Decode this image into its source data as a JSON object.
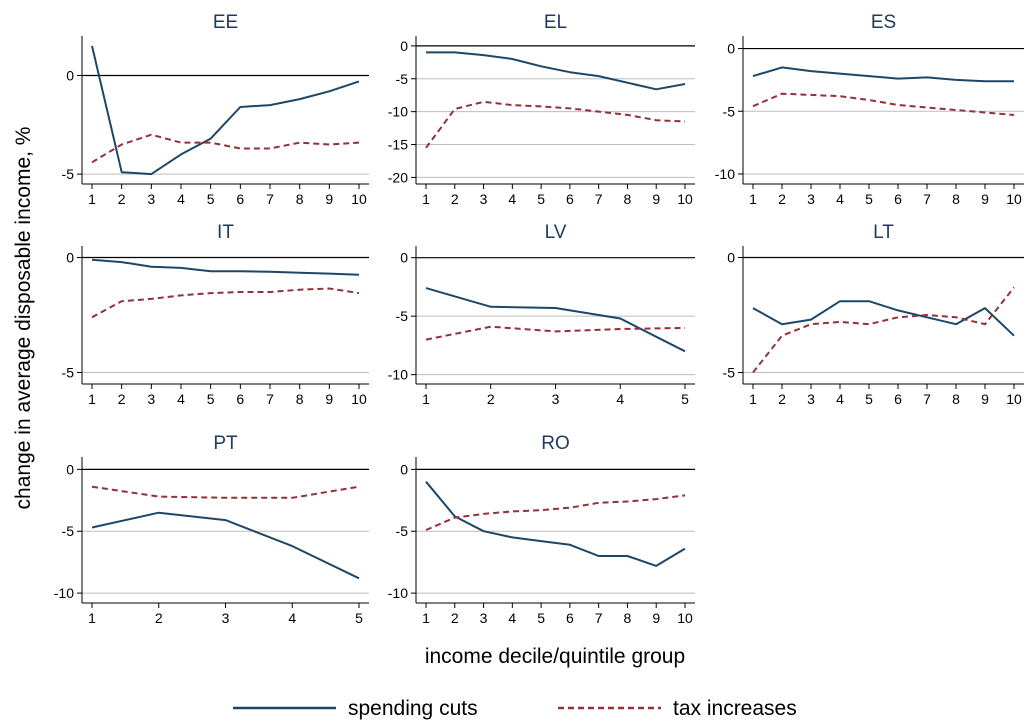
{
  "figure": {
    "ylabel": "change in average disposable income, %",
    "xlabel": "income decile/quintile group",
    "legend": {
      "position": "bottom-center"
    },
    "colors": {
      "spending": "#1e4668",
      "tax": "#93303a",
      "zero_line": "#000000",
      "grid": "#bdbdbd"
    }
  },
  "chart_data": [
    {
      "type": "line",
      "title": "EE",
      "x": [
        1,
        2,
        3,
        4,
        5,
        6,
        7,
        8,
        9,
        10
      ],
      "ylim": [
        -5.5,
        2
      ],
      "yticks": [
        0,
        -5
      ],
      "series": [
        {
          "name": "spending cuts",
          "values": [
            1.5,
            -4.9,
            -5.0,
            -4.0,
            -3.2,
            -1.6,
            -1.5,
            -1.2,
            -0.8,
            -0.3
          ]
        },
        {
          "name": "tax increases",
          "values": [
            -4.4,
            -3.5,
            -3.0,
            -3.4,
            -3.4,
            -3.7,
            -3.7,
            -3.4,
            -3.5,
            -3.4
          ]
        }
      ]
    },
    {
      "type": "line",
      "title": "EL",
      "x": [
        1,
        2,
        3,
        4,
        5,
        6,
        7,
        8,
        9,
        10
      ],
      "ylim": [
        -21,
        1.5
      ],
      "yticks": [
        0,
        -5,
        -10,
        -15,
        -20
      ],
      "series": [
        {
          "name": "spending cuts",
          "values": [
            -1.0,
            -1.0,
            -1.4,
            -2.0,
            -3.1,
            -4.0,
            -4.6,
            -5.6,
            -6.6,
            -5.8
          ]
        },
        {
          "name": "tax increases",
          "values": [
            -15.5,
            -9.6,
            -8.5,
            -9.0,
            -9.2,
            -9.5,
            -10.0,
            -10.5,
            -11.3,
            -11.5
          ]
        }
      ]
    },
    {
      "type": "line",
      "title": "ES",
      "x": [
        1,
        2,
        3,
        4,
        5,
        6,
        7,
        8,
        9,
        10
      ],
      "ylim": [
        -10.8,
        1
      ],
      "yticks": [
        0,
        -5,
        -10
      ],
      "series": [
        {
          "name": "spending cuts",
          "values": [
            -2.2,
            -1.5,
            -1.8,
            -2.0,
            -2.2,
            -2.4,
            -2.3,
            -2.5,
            -2.6,
            -2.6
          ]
        },
        {
          "name": "tax increases",
          "values": [
            -4.6,
            -3.6,
            -3.7,
            -3.8,
            -4.1,
            -4.5,
            -4.7,
            -4.9,
            -5.1,
            -5.3
          ]
        }
      ]
    },
    {
      "type": "line",
      "title": "IT",
      "x": [
        1,
        2,
        3,
        4,
        5,
        6,
        7,
        8,
        9,
        10
      ],
      "ylim": [
        -5.5,
        0.5
      ],
      "yticks": [
        0,
        -5
      ],
      "series": [
        {
          "name": "spending cuts",
          "values": [
            -0.1,
            -0.2,
            -0.4,
            -0.45,
            -0.6,
            -0.6,
            -0.62,
            -0.66,
            -0.7,
            -0.75
          ]
        },
        {
          "name": "tax increases",
          "values": [
            -2.6,
            -1.9,
            -1.8,
            -1.65,
            -1.55,
            -1.5,
            -1.5,
            -1.4,
            -1.35,
            -1.55
          ]
        }
      ]
    },
    {
      "type": "line",
      "title": "LV",
      "x": [
        1,
        2,
        3,
        4,
        5
      ],
      "ylim": [
        -10.8,
        1
      ],
      "yticks": [
        0,
        -5,
        -10
      ],
      "series": [
        {
          "name": "spending cuts",
          "values": [
            -2.6,
            -4.2,
            -4.3,
            -5.2,
            -8.0
          ]
        },
        {
          "name": "tax increases",
          "values": [
            -7.0,
            -5.9,
            -6.3,
            -6.1,
            -6.0
          ]
        }
      ]
    },
    {
      "type": "line",
      "title": "LT",
      "x": [
        1,
        2,
        3,
        4,
        5,
        6,
        7,
        8,
        9,
        10
      ],
      "ylim": [
        -5.5,
        0.5
      ],
      "yticks": [
        0,
        -5
      ],
      "series": [
        {
          "name": "spending cuts",
          "values": [
            -2.2,
            -2.9,
            -2.7,
            -1.9,
            -1.9,
            -2.3,
            -2.6,
            -2.9,
            -2.2,
            -3.4
          ]
        },
        {
          "name": "tax increases",
          "values": [
            -5.0,
            -3.4,
            -2.9,
            -2.8,
            -2.9,
            -2.6,
            -2.5,
            -2.6,
            -2.9,
            -1.3
          ]
        }
      ]
    },
    {
      "type": "line",
      "title": "PT",
      "x": [
        1,
        2,
        3,
        4,
        5
      ],
      "ylim": [
        -10.8,
        1
      ],
      "yticks": [
        0,
        -5,
        -10
      ],
      "series": [
        {
          "name": "spending cuts",
          "values": [
            -4.7,
            -3.5,
            -4.1,
            -6.2,
            -8.8
          ]
        },
        {
          "name": "tax increases",
          "values": [
            -1.4,
            -2.2,
            -2.3,
            -2.3,
            -1.4
          ]
        }
      ]
    },
    {
      "type": "line",
      "title": "RO",
      "x": [
        1,
        2,
        3,
        4,
        5,
        6,
        7,
        8,
        9,
        10
      ],
      "ylim": [
        -10.8,
        1
      ],
      "yticks": [
        0,
        -5,
        -10
      ],
      "series": [
        {
          "name": "spending cuts",
          "values": [
            -1.0,
            -3.8,
            -5.0,
            -5.5,
            -5.8,
            -6.1,
            -7.0,
            -7.0,
            -7.8,
            -6.4
          ]
        },
        {
          "name": "tax increases",
          "values": [
            -4.9,
            -3.9,
            -3.6,
            -3.4,
            -3.3,
            -3.1,
            -2.7,
            -2.6,
            -2.4,
            -2.1
          ]
        }
      ]
    }
  ]
}
